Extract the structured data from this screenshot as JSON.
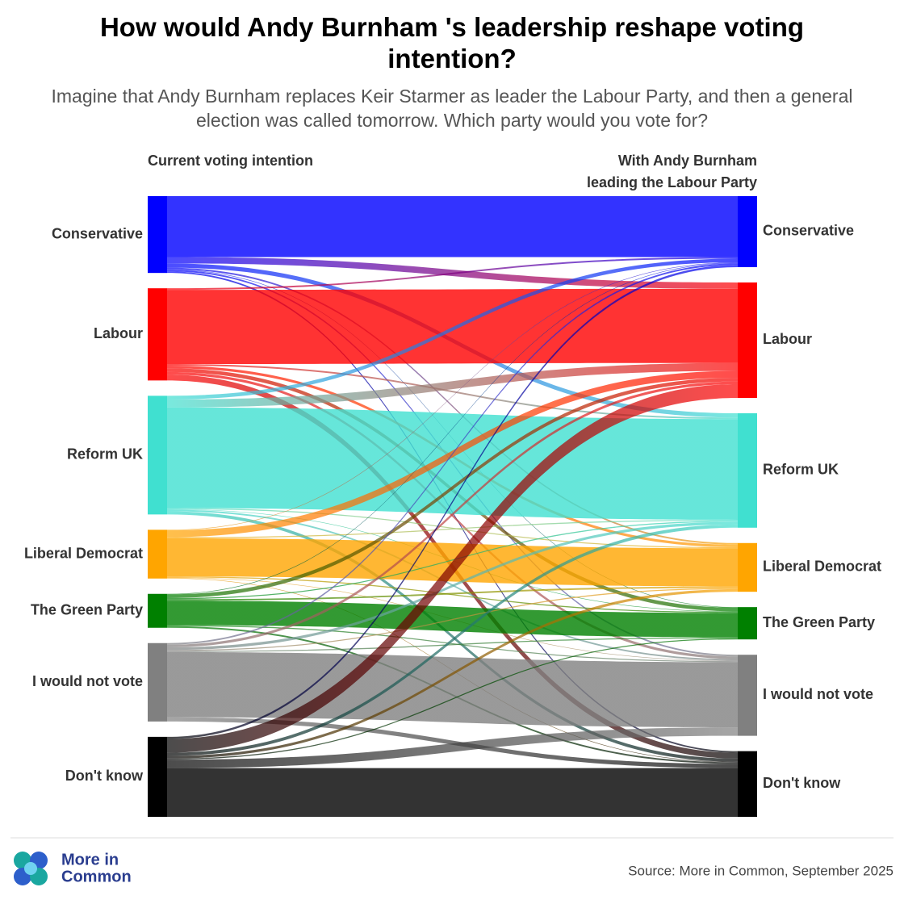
{
  "chart_data": {
    "type": "sankey",
    "title": "How would Andy Burnham 's leadership reshape voting intention?",
    "subtitle": "Imagine that Andy Burnham replaces Keir Starmer as leader the Labour Party, and then a general election was called tomorrow. Which party would you vote for?",
    "left_header": "Current voting intention",
    "right_header": [
      "With Andy Burnham",
      "leading the Labour Party"
    ],
    "nodes": [
      "Conservative",
      "Labour",
      "Reform UK",
      "Liberal Democrat",
      "The Green Party",
      "I would not vote",
      "Don't know"
    ],
    "colors": [
      "#0000ff",
      "#ff0000",
      "#40e0d0",
      "#ffa500",
      "#008000",
      "#808080",
      "#000000"
    ],
    "flows": [
      [
        11.5,
        1.2,
        0.8,
        0.3,
        0.1,
        0.3,
        0.3
      ],
      [
        0.3,
        14.0,
        0.3,
        0.5,
        0.7,
        0.5,
        1.1
      ],
      [
        0.7,
        1.5,
        19.0,
        0.2,
        0.1,
        0.3,
        0.6
      ],
      [
        0.1,
        1.3,
        0.2,
        7.2,
        0.2,
        0.1,
        0.1
      ],
      [
        0.1,
        0.7,
        0.2,
        0.3,
        4.6,
        0.2,
        0.3
      ],
      [
        0.3,
        0.5,
        0.5,
        0.2,
        0.2,
        12.3,
        0.8
      ],
      [
        0.4,
        2.6,
        0.6,
        0.5,
        0.2,
        1.6,
        9.2
      ]
    ],
    "source": "Source: More in Common, September 2025",
    "logo": [
      "More in",
      "Common"
    ]
  }
}
